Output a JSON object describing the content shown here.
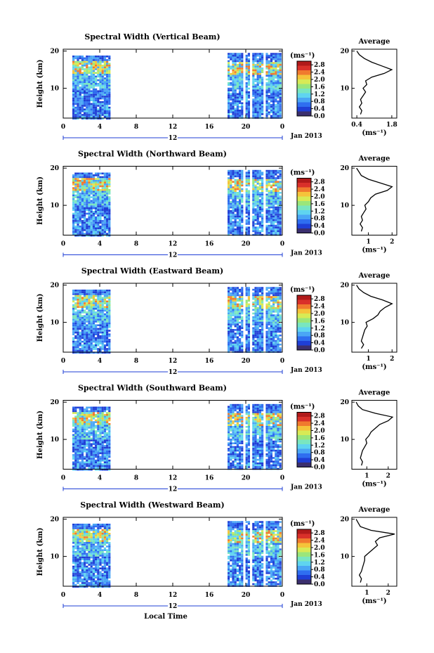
{
  "chart_data": {
    "type": "heatmap",
    "xlabel": "Local Time",
    "date_label": "Jan 2013",
    "x_ticks": [
      "0",
      "4",
      "8",
      "12",
      "16",
      "20",
      "0"
    ],
    "day_marker": "12",
    "ylabel": "Height (km)",
    "y_ticks": [
      "20",
      "10"
    ],
    "colorbar": {
      "unit": "(ms⁻¹)",
      "ticks": [
        "2.8",
        "2.4",
        "2.0",
        "1.6",
        "1.2",
        "0.8",
        "0.4",
        "0.0"
      ],
      "range": [
        0.0,
        3.0
      ]
    },
    "average_title": "Average",
    "average_unit": "(ms⁻¹)",
    "data_periods_local_time": [
      [
        1,
        5
      ],
      [
        18,
        24
      ]
    ],
    "colors": [
      "#3b2f6e",
      "#1f3fd6",
      "#2f6ef0",
      "#4aa6f5",
      "#5fd4f0",
      "#79e6c0",
      "#9be67a",
      "#d8ea55",
      "#f5c33a",
      "#f07a2e",
      "#d9302a",
      "#b01a1a"
    ],
    "panels": [
      {
        "title": "Spectral Width (Vertical Beam)",
        "avg_ticks": [
          "0.4",
          "1.8"
        ],
        "avg_xlim": [
          0.2,
          2.0
        ],
        "avg_profile": [
          {
            "h": 3,
            "v": 0.55
          },
          {
            "h": 4,
            "v": 0.6
          },
          {
            "h": 5,
            "v": 0.5
          },
          {
            "h": 6,
            "v": 0.6
          },
          {
            "h": 7,
            "v": 0.55
          },
          {
            "h": 8,
            "v": 0.65
          },
          {
            "h": 9,
            "v": 0.75
          },
          {
            "h": 10,
            "v": 0.65
          },
          {
            "h": 11,
            "v": 0.8
          },
          {
            "h": 12,
            "v": 0.75
          },
          {
            "h": 13,
            "v": 1.0
          },
          {
            "h": 14,
            "v": 1.5
          },
          {
            "h": 15,
            "v": 1.8
          },
          {
            "h": 16,
            "v": 1.4
          },
          {
            "h": 17,
            "v": 1.0
          },
          {
            "h": 18,
            "v": 0.7
          },
          {
            "h": 19,
            "v": 0.5
          },
          {
            "h": 20,
            "v": 0.4
          }
        ]
      },
      {
        "title": "Spectral Width (Northward Beam)",
        "avg_ticks": [
          "1",
          "2"
        ],
        "avg_xlim": [
          0.3,
          2.2
        ],
        "avg_profile": [
          {
            "h": 3,
            "v": 0.7
          },
          {
            "h": 4,
            "v": 0.75
          },
          {
            "h": 5,
            "v": 0.65
          },
          {
            "h": 6,
            "v": 0.75
          },
          {
            "h": 7,
            "v": 0.7
          },
          {
            "h": 8,
            "v": 0.8
          },
          {
            "h": 9,
            "v": 0.9
          },
          {
            "h": 10,
            "v": 0.85
          },
          {
            "h": 11,
            "v": 1.0
          },
          {
            "h": 12,
            "v": 1.1
          },
          {
            "h": 13,
            "v": 1.3
          },
          {
            "h": 14,
            "v": 1.8
          },
          {
            "h": 15,
            "v": 2.0
          },
          {
            "h": 16,
            "v": 1.5
          },
          {
            "h": 17,
            "v": 1.0
          },
          {
            "h": 18,
            "v": 0.7
          },
          {
            "h": 19,
            "v": 0.6
          },
          {
            "h": 20,
            "v": 0.5
          }
        ]
      },
      {
        "title": "Spectral Width (Eastward Beam)",
        "avg_ticks": [
          "1",
          "2"
        ],
        "avg_xlim": [
          0.3,
          2.2
        ],
        "avg_profile": [
          {
            "h": 3,
            "v": 0.7
          },
          {
            "h": 4,
            "v": 0.8
          },
          {
            "h": 5,
            "v": 0.7
          },
          {
            "h": 6,
            "v": 0.75
          },
          {
            "h": 7,
            "v": 0.8
          },
          {
            "h": 8,
            "v": 0.85
          },
          {
            "h": 9,
            "v": 0.95
          },
          {
            "h": 10,
            "v": 0.9
          },
          {
            "h": 11,
            "v": 1.2
          },
          {
            "h": 12,
            "v": 1.4
          },
          {
            "h": 13,
            "v": 1.5
          },
          {
            "h": 14,
            "v": 1.7
          },
          {
            "h": 15,
            "v": 2.0
          },
          {
            "h": 16,
            "v": 1.6
          },
          {
            "h": 17,
            "v": 1.1
          },
          {
            "h": 18,
            "v": 0.8
          },
          {
            "h": 19,
            "v": 0.6
          },
          {
            "h": 20,
            "v": 0.5
          }
        ]
      },
      {
        "title": "Spectral Width (Southward Beam)",
        "avg_ticks": [
          "1",
          "2"
        ],
        "avg_xlim": [
          0.3,
          2.4
        ],
        "avg_profile": [
          {
            "h": 3,
            "v": 0.75
          },
          {
            "h": 4,
            "v": 0.8
          },
          {
            "h": 5,
            "v": 0.7
          },
          {
            "h": 6,
            "v": 0.75
          },
          {
            "h": 7,
            "v": 0.8
          },
          {
            "h": 8,
            "v": 0.9
          },
          {
            "h": 9,
            "v": 1.0
          },
          {
            "h": 10,
            "v": 0.95
          },
          {
            "h": 11,
            "v": 1.1
          },
          {
            "h": 12,
            "v": 1.2
          },
          {
            "h": 13,
            "v": 1.4
          },
          {
            "h": 14,
            "v": 1.6
          },
          {
            "h": 15,
            "v": 2.0
          },
          {
            "h": 16,
            "v": 2.2
          },
          {
            "h": 17,
            "v": 1.4
          },
          {
            "h": 18,
            "v": 0.8
          },
          {
            "h": 19,
            "v": 0.6
          },
          {
            "h": 20,
            "v": 0.5
          }
        ]
      },
      {
        "title": "Spectral Width (Westward Beam)",
        "avg_ticks": [
          "1",
          "2"
        ],
        "avg_xlim": [
          0.3,
          2.4
        ],
        "avg_profile": [
          {
            "h": 3,
            "v": 0.7
          },
          {
            "h": 4,
            "v": 0.75
          },
          {
            "h": 5,
            "v": 0.65
          },
          {
            "h": 6,
            "v": 0.75
          },
          {
            "h": 7,
            "v": 0.8
          },
          {
            "h": 8,
            "v": 0.85
          },
          {
            "h": 9,
            "v": 0.9
          },
          {
            "h": 10,
            "v": 0.9
          },
          {
            "h": 11,
            "v": 1.1
          },
          {
            "h": 12,
            "v": 1.3
          },
          {
            "h": 13,
            "v": 1.5
          },
          {
            "h": 14,
            "v": 1.4
          },
          {
            "h": 15,
            "v": 1.6
          },
          {
            "h": 16,
            "v": 2.3
          },
          {
            "h": 17,
            "v": 1.2
          },
          {
            "h": 18,
            "v": 0.7
          },
          {
            "h": 19,
            "v": 0.6
          },
          {
            "h": 20,
            "v": 0.5
          }
        ]
      }
    ]
  }
}
